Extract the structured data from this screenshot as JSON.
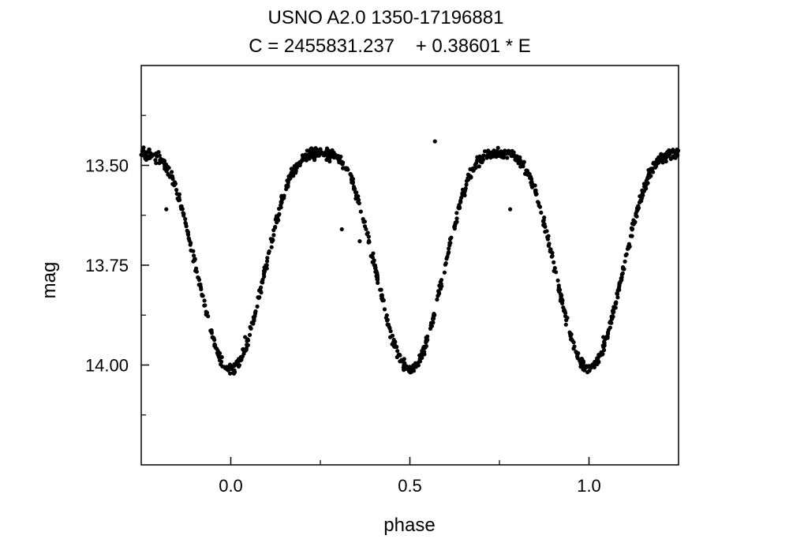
{
  "chart_data": {
    "type": "scatter",
    "title": "USNO A2.0 1350-17196881",
    "subtitle": "C = 2455831.237    + 0.38601 * E",
    "xlabel": "phase",
    "ylabel": "mag",
    "xlim": [
      -0.25,
      1.25
    ],
    "ylim": [
      14.25,
      13.25
    ],
    "y_inverted": true,
    "x_ticks": [
      0.0,
      0.5,
      1.0
    ],
    "x_tick_labels": [
      "0.0",
      "0.5",
      "1.0"
    ],
    "x_minor_ticks": [
      0.25,
      0.75
    ],
    "y_ticks": [
      13.5,
      13.75,
      14.0
    ],
    "y_tick_labels": [
      "13.50",
      "13.75",
      "14.00"
    ],
    "y_minor_ticks": [
      13.375,
      13.625,
      13.875,
      14.125
    ],
    "grid": false,
    "marker_color": "#000000",
    "model": {
      "description_values": {
        "max_mag": 13.47,
        "min_mag": 14.01,
        "phase_max": [
          0.25,
          0.75
        ]
      }
    },
    "outliers": [
      {
        "x": -0.18,
        "y": 13.61
      },
      {
        "x": 0.31,
        "y": 13.66
      },
      {
        "x": 0.36,
        "y": 13.69
      },
      {
        "x": 0.78,
        "y": 13.61
      },
      {
        "x": 0.04,
        "y": 13.93
      },
      {
        "x": 1.04,
        "y": 13.93
      },
      {
        "x": 0.57,
        "y": 13.44
      }
    ]
  }
}
